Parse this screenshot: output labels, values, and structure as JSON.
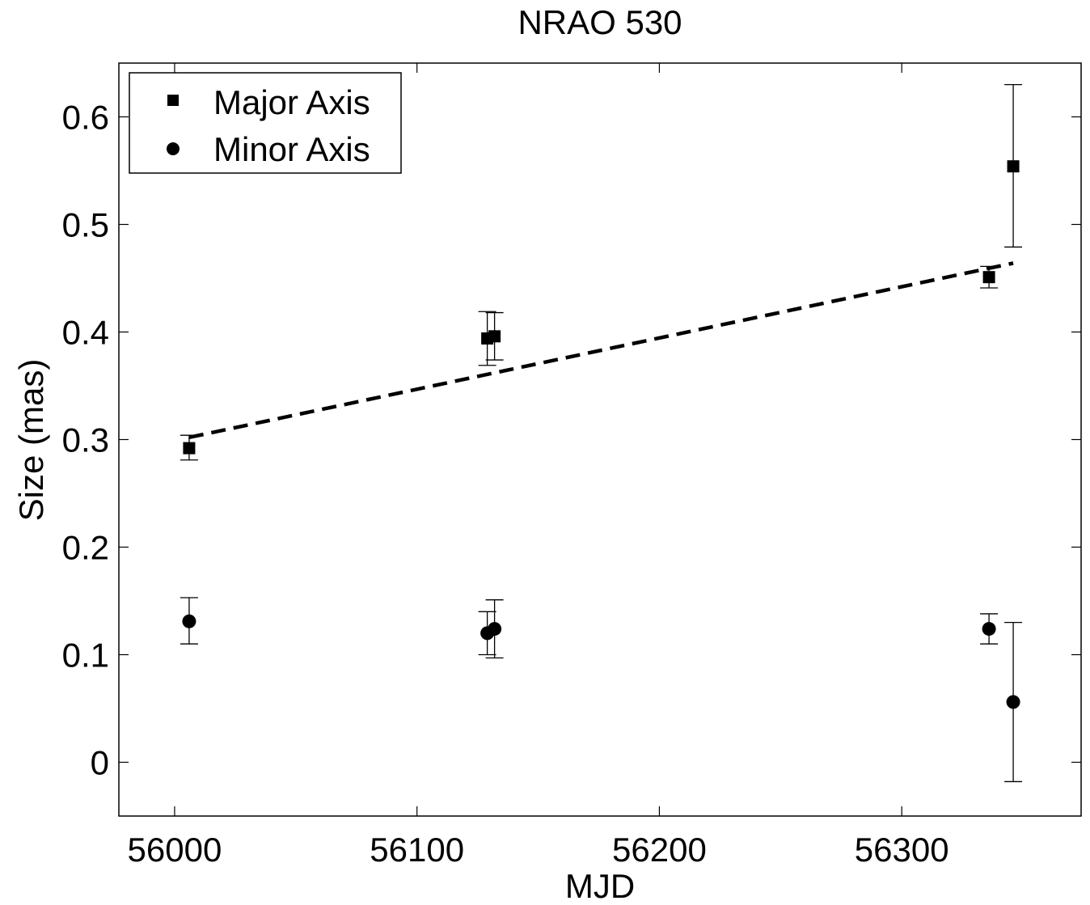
{
  "chart_data": {
    "type": "scatter",
    "title": "NRAO 530",
    "xlabel": "MJD",
    "ylabel": "Size (mas)",
    "xlim": [
      55977,
      56374
    ],
    "ylim": [
      -0.05,
      0.65
    ],
    "xticks": [
      56000,
      56100,
      56200,
      56300
    ],
    "yticks": [
      0,
      0.1,
      0.2,
      0.3,
      0.4,
      0.5,
      0.6
    ],
    "xtick_labels": [
      "56000",
      "56100",
      "56200",
      "56300"
    ],
    "ytick_labels": [
      "0",
      "0.1",
      "0.2",
      "0.3",
      "0.4",
      "0.5",
      "0.6"
    ],
    "grid": false,
    "legend_position": "top-left",
    "series": [
      {
        "name": "Major Axis",
        "marker": "square",
        "color": "#000000",
        "points": [
          {
            "x": 56006,
            "y": 0.292,
            "yerr_low": 0.281,
            "yerr_high": 0.304
          },
          {
            "x": 56129,
            "y": 0.394,
            "yerr_low": 0.369,
            "yerr_high": 0.419
          },
          {
            "x": 56132,
            "y": 0.396,
            "yerr_low": 0.374,
            "yerr_high": 0.418
          },
          {
            "x": 56336,
            "y": 0.451,
            "yerr_low": 0.441,
            "yerr_high": 0.461
          },
          {
            "x": 56346,
            "y": 0.554,
            "yerr_low": 0.479,
            "yerr_high": 0.63
          }
        ]
      },
      {
        "name": "Minor Axis",
        "marker": "circle",
        "color": "#000000",
        "points": [
          {
            "x": 56006,
            "y": 0.131,
            "yerr_low": 0.11,
            "yerr_high": 0.153
          },
          {
            "x": 56129,
            "y": 0.12,
            "yerr_low": 0.1,
            "yerr_high": 0.14
          },
          {
            "x": 56132,
            "y": 0.124,
            "yerr_low": 0.097,
            "yerr_high": 0.151
          },
          {
            "x": 56336,
            "y": 0.124,
            "yerr_low": 0.11,
            "yerr_high": 0.138
          },
          {
            "x": 56346,
            "y": 0.056,
            "yerr_low": -0.018,
            "yerr_high": 0.13
          }
        ]
      }
    ],
    "fit_line": {
      "style": "dashed",
      "color": "#000000",
      "x": [
        56006,
        56346
      ],
      "y": [
        0.302,
        0.464
      ]
    }
  }
}
